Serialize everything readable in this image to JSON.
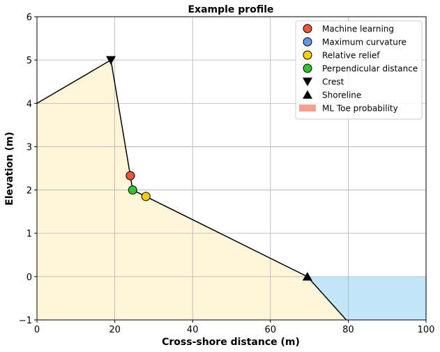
{
  "chart_data": {
    "type": "line",
    "title": "Example profile",
    "xlabel": "Cross-shore distance (m)",
    "ylabel": "Elevation (m)",
    "xlim": [
      0,
      100
    ],
    "ylim": [
      -1,
      6
    ],
    "xticks": [
      "0",
      "20",
      "40",
      "60",
      "80",
      "100"
    ],
    "yticks": [
      "−1",
      "0",
      "1",
      "2",
      "3",
      "4",
      "5",
      "6"
    ],
    "grid": true,
    "legend_position": "top-right",
    "profile": {
      "x": [
        0,
        19,
        24,
        24.6,
        28,
        69.5,
        79.5
      ],
      "y": [
        4,
        5,
        2.33,
        2.0,
        1.85,
        0,
        -1
      ],
      "color": "#000000",
      "fill_color": "#fff6da"
    },
    "water": {
      "x": [
        69.5,
        79.5,
        100,
        100
      ],
      "y": [
        0,
        -1,
        -1,
        0
      ],
      "color": "#c2e5fa"
    },
    "markers": [
      {
        "name": "Machine learning",
        "x": 24,
        "y": 2.33,
        "shape": "circle",
        "color": "#ef553b"
      },
      {
        "name": "Maximum curvature",
        "x": 24,
        "y": 2.33,
        "shape": "circle",
        "color": "#6b96e8"
      },
      {
        "name": "Relative relief",
        "x": 28,
        "y": 1.85,
        "shape": "circle",
        "color": "#f5d000"
      },
      {
        "name": "Perpendicular distance",
        "x": 24.6,
        "y": 2.0,
        "shape": "circle",
        "color": "#2fc42f"
      },
      {
        "name": "Crest",
        "x": 19,
        "y": 5,
        "shape": "triangle-down",
        "color": "#000000"
      },
      {
        "name": "Shoreline",
        "x": 69.5,
        "y": 0,
        "shape": "triangle-up",
        "color": "#000000"
      }
    ],
    "legend": [
      {
        "label": "Machine learning",
        "shape": "circle",
        "color": "#ef553b"
      },
      {
        "label": "Maximum curvature",
        "shape": "circle",
        "color": "#6b96e8"
      },
      {
        "label": "Relative relief",
        "shape": "circle",
        "color": "#f5d000"
      },
      {
        "label": "Perpendicular distance",
        "shape": "circle",
        "color": "#2fc42f"
      },
      {
        "label": "Crest",
        "shape": "triangle-down",
        "color": "#000000"
      },
      {
        "label": "Shoreline",
        "shape": "triangle-up",
        "color": "#000000"
      },
      {
        "label": "ML Toe probability",
        "shape": "patch",
        "color": "#f8a08e"
      }
    ]
  }
}
